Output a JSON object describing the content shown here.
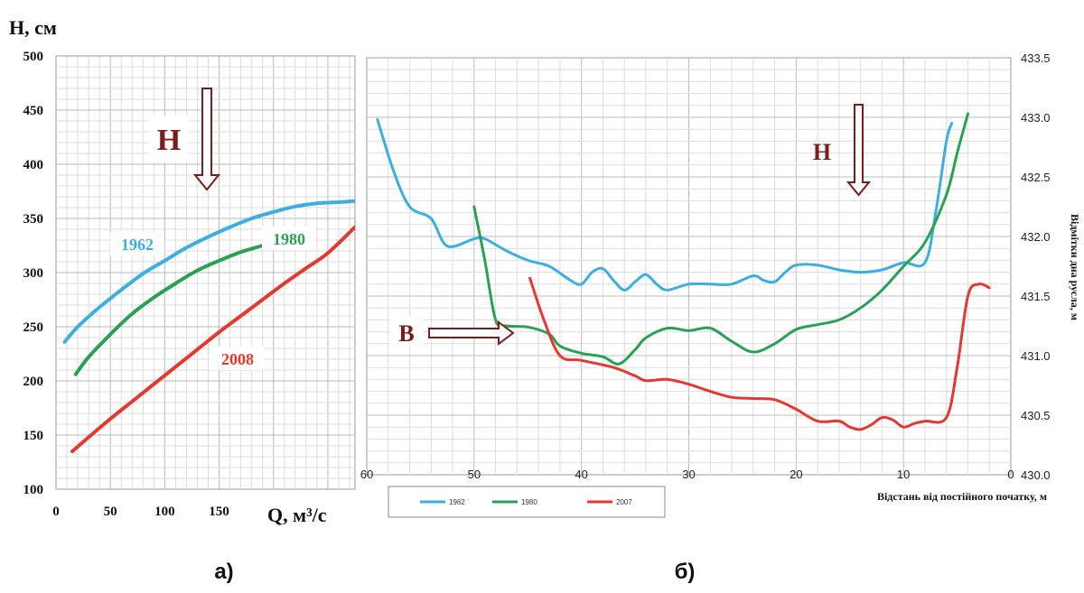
{
  "panel_labels": {
    "a": "а)",
    "b": "б)"
  },
  "chart_data": [
    {
      "type": "line",
      "panel": "а)",
      "ylabel": "H, см",
      "xlabel": "Q, м³/с",
      "xlim": [
        0,
        275
      ],
      "ylim": [
        100,
        500
      ],
      "x_ticks": [
        0,
        50,
        100,
        150
      ],
      "y_ticks": [
        100,
        150,
        200,
        250,
        300,
        350,
        400,
        450,
        500
      ],
      "grid": true,
      "annotations": [
        {
          "text": "H",
          "arrow": "down"
        }
      ],
      "series": [
        {
          "name": "1962",
          "color": "#3daee0",
          "points": [
            [
              8,
              236
            ],
            [
              20,
              250
            ],
            [
              40,
              268
            ],
            [
              60,
              284
            ],
            [
              80,
              299
            ],
            [
              100,
              311
            ],
            [
              120,
              323
            ],
            [
              140,
              333
            ],
            [
              160,
              342
            ],
            [
              180,
              350
            ],
            [
              200,
              356
            ],
            [
              220,
              361
            ],
            [
              240,
              364
            ],
            [
              260,
              365
            ],
            [
              275,
              366
            ]
          ]
        },
        {
          "name": "1980",
          "color": "#2aa152",
          "points": [
            [
              18,
              206
            ],
            [
              30,
              222
            ],
            [
              50,
              243
            ],
            [
              70,
              262
            ],
            [
              90,
              277
            ],
            [
              110,
              290
            ],
            [
              130,
              302
            ],
            [
              150,
              311
            ],
            [
              170,
              319
            ],
            [
              180,
              322
            ],
            [
              190,
              325
            ]
          ]
        },
        {
          "name": "2008",
          "color": "#e53830",
          "points": [
            [
              15,
              135
            ],
            [
              30,
              148
            ],
            [
              50,
              165
            ],
            [
              70,
              181
            ],
            [
              90,
              197
            ],
            [
              110,
              213
            ],
            [
              130,
              229
            ],
            [
              150,
              245
            ],
            [
              170,
              260
            ],
            [
              190,
              275
            ],
            [
              210,
              290
            ],
            [
              230,
              304
            ],
            [
              250,
              318
            ],
            [
              275,
              342
            ]
          ]
        }
      ]
    },
    {
      "type": "line",
      "panel": "б)",
      "xlabel": "Відстань від постійного початку, м",
      "ylabel": "Відмітки дна русла, м",
      "xlim": [
        60,
        0
      ],
      "ylim": [
        430.0,
        433.5
      ],
      "x_ticks": [
        60,
        50,
        40,
        30,
        20,
        10,
        0
      ],
      "y_ticks": [
        "430.0",
        "430.5",
        "431.0",
        "431.5",
        "432.0",
        "432.5",
        "433.0",
        "433.5"
      ],
      "grid": true,
      "legend_position": "bottom-left",
      "annotations": [
        {
          "text": "H",
          "arrow": "down"
        },
        {
          "text": "B",
          "arrow": "right"
        }
      ],
      "series": [
        {
          "name": "1962",
          "color": "#3daee0",
          "points": [
            [
              59,
              432.98
            ],
            [
              57.5,
              432.55
            ],
            [
              56,
              432.25
            ],
            [
              54,
              432.15
            ],
            [
              52.5,
              431.92
            ],
            [
              50,
              431.98
            ],
            [
              49,
              431.98
            ],
            [
              47,
              431.88
            ],
            [
              45,
              431.8
            ],
            [
              43,
              431.75
            ],
            [
              41,
              431.63
            ],
            [
              40,
              431.6
            ],
            [
              39,
              431.7
            ],
            [
              38,
              431.73
            ],
            [
              37,
              431.63
            ],
            [
              36,
              431.55
            ],
            [
              35,
              431.62
            ],
            [
              34,
              431.68
            ],
            [
              33,
              431.6
            ],
            [
              32,
              431.55
            ],
            [
              30,
              431.6
            ],
            [
              28,
              431.6
            ],
            [
              26,
              431.6
            ],
            [
              24,
              431.67
            ],
            [
              23,
              431.63
            ],
            [
              22,
              431.62
            ],
            [
              21,
              431.7
            ],
            [
              20,
              431.76
            ],
            [
              18,
              431.76
            ],
            [
              16,
              431.72
            ],
            [
              14,
              431.7
            ],
            [
              12,
              431.72
            ],
            [
              10,
              431.78
            ],
            [
              8,
              431.78
            ],
            [
              7,
              432.2
            ],
            [
              6,
              432.8
            ],
            [
              5.5,
              432.95
            ]
          ]
        },
        {
          "name": "1980",
          "color": "#2aa152",
          "points": [
            [
              50,
              432.25
            ],
            [
              49,
              431.8
            ],
            [
              48,
              431.3
            ],
            [
              47,
              431.25
            ],
            [
              45,
              431.24
            ],
            [
              43,
              431.18
            ],
            [
              42,
              431.08
            ],
            [
              40,
              431.02
            ],
            [
              38,
              430.99
            ],
            [
              36.5,
              430.93
            ],
            [
              35,
              431.05
            ],
            [
              34,
              431.15
            ],
            [
              32,
              431.23
            ],
            [
              30,
              431.21
            ],
            [
              28,
              431.23
            ],
            [
              26,
              431.12
            ],
            [
              24,
              431.03
            ],
            [
              22,
              431.1
            ],
            [
              20,
              431.22
            ],
            [
              18,
              431.26
            ],
            [
              16,
              431.3
            ],
            [
              14,
              431.4
            ],
            [
              12,
              431.55
            ],
            [
              10,
              431.75
            ],
            [
              8,
              431.95
            ],
            [
              6,
              432.35
            ],
            [
              5,
              432.7
            ],
            [
              4,
              433.03
            ]
          ]
        },
        {
          "name": "2007",
          "color": "#e53830",
          "points": [
            [
              44.8,
              431.65
            ],
            [
              43.5,
              431.3
            ],
            [
              42,
              431.0
            ],
            [
              40,
              430.96
            ],
            [
              37,
              430.9
            ],
            [
              35,
              430.83
            ],
            [
              34,
              430.79
            ],
            [
              32,
              430.8
            ],
            [
              30,
              430.76
            ],
            [
              28,
              430.7
            ],
            [
              26,
              430.65
            ],
            [
              24,
              430.64
            ],
            [
              22,
              430.63
            ],
            [
              20,
              430.55
            ],
            [
              18,
              430.45
            ],
            [
              16,
              430.45
            ],
            [
              15,
              430.4
            ],
            [
              14,
              430.38
            ],
            [
              13,
              430.42
            ],
            [
              12,
              430.48
            ],
            [
              11,
              430.46
            ],
            [
              10,
              430.4
            ],
            [
              9,
              430.43
            ],
            [
              8,
              430.45
            ],
            [
              6,
              430.48
            ],
            [
              5,
              430.9
            ],
            [
              4,
              431.5
            ],
            [
              3,
              431.6
            ],
            [
              2,
              431.57
            ]
          ]
        }
      ]
    }
  ]
}
